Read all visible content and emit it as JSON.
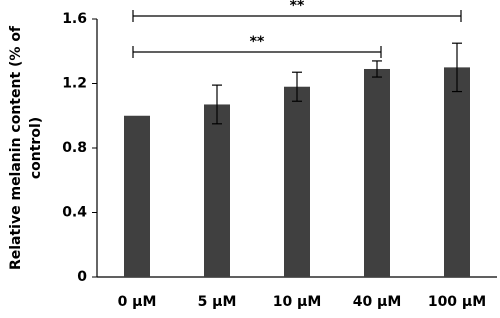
{
  "chart_data": {
    "type": "bar",
    "ylabel": [
      "Relative melanin content (% of",
      "control)"
    ],
    "categories": [
      "0 µM",
      "5 µM",
      "10 µM",
      "40 µM",
      "100 µM"
    ],
    "values": [
      1.0,
      1.07,
      1.18,
      1.29,
      1.3
    ],
    "errors": [
      0,
      0.12,
      0.09,
      0.05,
      0.15
    ],
    "color": "#404040",
    "ylim": [
      0,
      1.6
    ],
    "yticks": [
      0,
      0.4,
      0.8,
      1.2,
      1.6
    ],
    "significance": [
      {
        "label": "**",
        "groups": [
          0,
          4
        ]
      },
      {
        "label": "**",
        "groups": [
          0,
          3
        ]
      }
    ]
  }
}
